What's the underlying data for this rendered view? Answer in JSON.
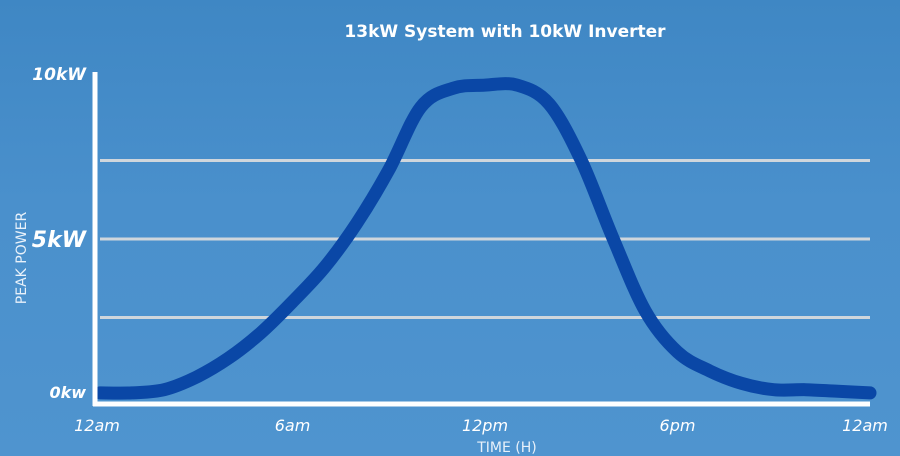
{
  "chart_data": {
    "type": "line",
    "title": "13kW System with 10kW Inverter",
    "xlabel": "TIME (H)",
    "ylabel": "PEAK POWER",
    "x_tick_labels": [
      "12am",
      "6am",
      "12pm",
      "6pm",
      "12am"
    ],
    "x_tick_values": [
      0,
      6,
      12,
      18,
      24
    ],
    "xlim": [
      0,
      24
    ],
    "y_ticks": [
      {
        "value": 0,
        "label": "0kw"
      },
      {
        "value": 5,
        "label": "5kW"
      },
      {
        "value": 10,
        "label": "10kW"
      }
    ],
    "ylim": [
      0,
      10
    ],
    "grid_values": [
      2.5,
      5,
      7.5
    ],
    "grid": true,
    "series": [
      {
        "name": "",
        "x": [
          0,
          1,
          2,
          3,
          4,
          5,
          6,
          7,
          8,
          9,
          10,
          11,
          12,
          13,
          14,
          15,
          16,
          17,
          18,
          19,
          20,
          21,
          22,
          23,
          24
        ],
        "y": [
          0.1,
          0.1,
          0.2,
          0.6,
          1.2,
          2.0,
          3.0,
          4.1,
          5.5,
          7.2,
          9.2,
          9.8,
          9.9,
          9.9,
          9.3,
          7.5,
          5.0,
          2.7,
          1.4,
          0.8,
          0.4,
          0.2,
          0.2,
          0.15,
          0.1
        ]
      }
    ],
    "colors": {
      "line": "#0a47a6",
      "axis": "#ffffff",
      "grid": "#cfd6dc"
    }
  }
}
